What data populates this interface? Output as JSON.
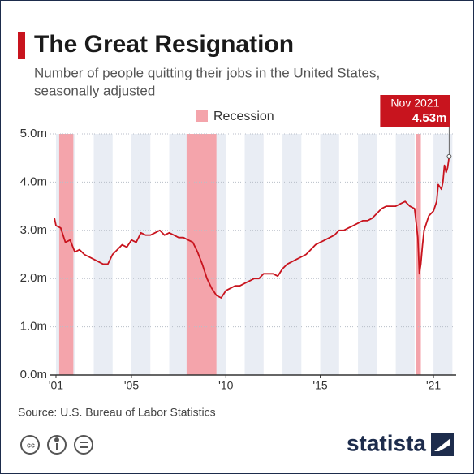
{
  "chart_data": {
    "type": "line",
    "title": "The Great Resignation",
    "subtitle": [
      "Number of people quitting their jobs in the United States,",
      "seasonally adjusted"
    ],
    "color": "#c8141e",
    "x": [
      2000.92,
      2001.0,
      2001.25,
      2001.5,
      2001.75,
      2002.0,
      2002.25,
      2002.5,
      2002.75,
      2003.0,
      2003.25,
      2003.5,
      2003.75,
      2004.0,
      2004.25,
      2004.5,
      2004.75,
      2005.0,
      2005.25,
      2005.5,
      2005.75,
      2006.0,
      2006.25,
      2006.5,
      2006.75,
      2007.0,
      2007.25,
      2007.5,
      2007.75,
      2008.0,
      2008.25,
      2008.5,
      2008.75,
      2009.0,
      2009.25,
      2009.5,
      2009.75,
      2010.0,
      2010.25,
      2010.5,
      2010.75,
      2011.0,
      2011.25,
      2011.5,
      2011.75,
      2012.0,
      2012.25,
      2012.5,
      2012.75,
      2013.0,
      2013.25,
      2013.5,
      2013.75,
      2014.0,
      2014.25,
      2014.5,
      2014.75,
      2015.0,
      2015.25,
      2015.5,
      2015.75,
      2016.0,
      2016.25,
      2016.5,
      2016.75,
      2017.0,
      2017.25,
      2017.5,
      2017.75,
      2018.0,
      2018.25,
      2018.5,
      2018.75,
      2019.0,
      2019.25,
      2019.5,
      2019.75,
      2020.0,
      2020.17,
      2020.25,
      2020.33,
      2020.42,
      2020.5,
      2020.75,
      2021.0,
      2021.17,
      2021.25,
      2021.42,
      2021.5,
      2021.58,
      2021.67,
      2021.75,
      2021.83
    ],
    "values": [
      3.25,
      3.1,
      3.05,
      2.75,
      2.8,
      2.55,
      2.6,
      2.5,
      2.45,
      2.4,
      2.35,
      2.3,
      2.3,
      2.5,
      2.6,
      2.7,
      2.65,
      2.8,
      2.75,
      2.95,
      2.9,
      2.9,
      2.95,
      3.0,
      2.9,
      2.95,
      2.9,
      2.85,
      2.85,
      2.8,
      2.75,
      2.55,
      2.3,
      2.0,
      1.8,
      1.65,
      1.6,
      1.75,
      1.8,
      1.85,
      1.85,
      1.9,
      1.95,
      2.0,
      2.0,
      2.1,
      2.1,
      2.1,
      2.05,
      2.2,
      2.3,
      2.35,
      2.4,
      2.45,
      2.5,
      2.6,
      2.7,
      2.75,
      2.8,
      2.85,
      2.9,
      3.0,
      3.0,
      3.05,
      3.1,
      3.15,
      3.2,
      3.2,
      3.25,
      3.35,
      3.45,
      3.5,
      3.5,
      3.5,
      3.55,
      3.6,
      3.5,
      3.45,
      2.85,
      2.1,
      2.3,
      2.7,
      3.0,
      3.3,
      3.4,
      3.6,
      3.95,
      3.85,
      4.0,
      4.35,
      4.2,
      4.3,
      4.53
    ],
    "xlim": [
      2000.7,
      2022.2
    ],
    "xticks": [
      {
        "value": 2001,
        "label": "'01"
      },
      {
        "value": 2005,
        "label": "'05"
      },
      {
        "value": 2010,
        "label": "'10"
      },
      {
        "value": 2015,
        "label": "'15"
      },
      {
        "value": 2021,
        "label": "'21"
      }
    ],
    "ylim": [
      0,
      5
    ],
    "yticks": [
      {
        "value": 0,
        "label": "0.0m"
      },
      {
        "value": 1,
        "label": "1.0m"
      },
      {
        "value": 2,
        "label": "2.0m"
      },
      {
        "value": 3,
        "label": "3.0m"
      },
      {
        "value": 4,
        "label": "4.0m"
      },
      {
        "value": 5,
        "label": "5.0m"
      }
    ],
    "grid": true,
    "recessions": {
      "name": "Recession",
      "color": "#f4a4ab",
      "periods": [
        [
          2001.17,
          2001.92
        ],
        [
          2007.92,
          2009.5
        ],
        [
          2020.08,
          2020.33
        ]
      ]
    },
    "annotation": {
      "title": "Nov 2021",
      "text": "4.53m"
    },
    "source": "Source: U.S. Bureau of Labor Statistics",
    "logo": "statista"
  }
}
